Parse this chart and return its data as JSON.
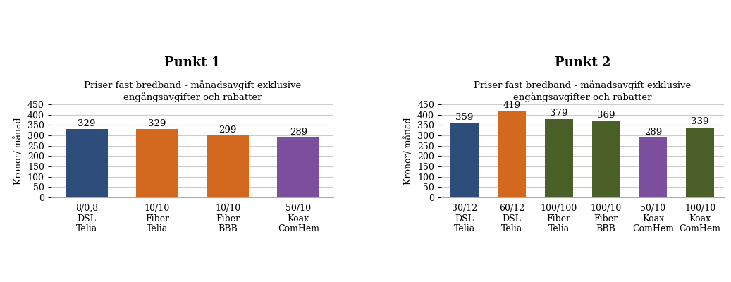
{
  "chart1": {
    "title": "Punkt 1",
    "subtitle": "Priser fast bredband - månadsavgift exklusive\nengångsavgifter och rabatter",
    "values": [
      329,
      329,
      299,
      289
    ],
    "colors": [
      "#2E4D7B",
      "#D2691E",
      "#D2691E",
      "#7B4F9E"
    ],
    "tick_line1": [
      "8/0,8",
      "10/10",
      "10/10",
      "50/10"
    ],
    "tick_line2": [
      "DSL",
      "Fiber",
      "Fiber",
      "Koax"
    ],
    "tick_line3": [
      "Telia",
      "Telia",
      "BBB",
      "ComHem"
    ],
    "ylabel": "Kronor/ månad",
    "ylim": [
      0,
      450
    ],
    "yticks": [
      0,
      50,
      100,
      150,
      200,
      250,
      300,
      350,
      400,
      450
    ]
  },
  "chart2": {
    "title": "Punkt 2",
    "subtitle": "Priser fast bredband - månadsavgift exklusive\nengångsavgifter och rabatter",
    "values": [
      359,
      419,
      379,
      369,
      289,
      339
    ],
    "colors": [
      "#2E4D7B",
      "#D2691E",
      "#4A5E28",
      "#4A5E28",
      "#7B4F9E",
      "#4A5E28"
    ],
    "tick_line1": [
      "30/12",
      "60/12",
      "100/100",
      "100/10",
      "50/10",
      "100/10"
    ],
    "tick_line2": [
      "DSL",
      "DSL",
      "Fiber",
      "Fiber",
      "Koax",
      "Koax"
    ],
    "tick_line3": [
      "Telia",
      "Telia",
      "Telia",
      "BBB",
      "ComHem",
      "ComHem"
    ],
    "ylabel": "Kronor/ månad",
    "ylim": [
      0,
      450
    ],
    "yticks": [
      0,
      50,
      100,
      150,
      200,
      250,
      300,
      350,
      400,
      450
    ]
  },
  "bg_color": "#FFFFFF",
  "title_fontsize": 13,
  "subtitle_fontsize": 9.5,
  "bar_label_fontsize": 9.5,
  "tick_fontsize": 9,
  "ylabel_fontsize": 9
}
